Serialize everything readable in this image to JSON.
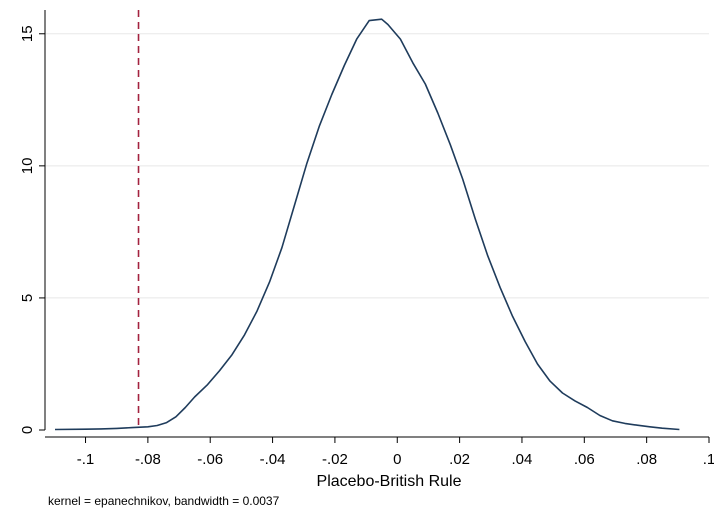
{
  "chart_data": {
    "type": "line",
    "title": "",
    "xlabel": "Placebo-British Rule",
    "ylabel": "",
    "xlim": [
      -0.113,
      0.1
    ],
    "ylim": [
      0,
      15.9
    ],
    "x_ticks": [
      -0.1,
      -0.08,
      -0.06,
      -0.04,
      -0.02,
      0,
      0.02,
      0.04,
      0.06,
      0.08,
      0.1
    ],
    "x_tick_labels": [
      "-.1",
      "-.08",
      "-.06",
      "-.04",
      "-.02",
      "0",
      ".02",
      ".04",
      ".06",
      ".08",
      ".1"
    ],
    "y_ticks": [
      0,
      5,
      10,
      15
    ],
    "y_tick_labels": [
      "0",
      "5",
      "10",
      "15"
    ],
    "grid": "horizontal",
    "reference_line": {
      "x": -0.083,
      "style": "dashed",
      "color": "#a3223f"
    },
    "series": [
      {
        "color": "#1f3c5c",
        "x": [
          -0.1098,
          -0.1,
          -0.095,
          -0.09,
          -0.085,
          -0.08,
          -0.077,
          -0.074,
          -0.071,
          -0.068,
          -0.065,
          -0.061,
          -0.057,
          -0.053,
          -0.049,
          -0.045,
          -0.041,
          -0.037,
          -0.033,
          -0.029,
          -0.025,
          -0.021,
          -0.017,
          -0.013,
          -0.009,
          -0.005,
          -0.003,
          0.001,
          0.005,
          0.009,
          0.013,
          0.017,
          0.021,
          0.025,
          0.029,
          0.033,
          0.037,
          0.041,
          0.045,
          0.049,
          0.053,
          0.057,
          0.061,
          0.065,
          0.069,
          0.073,
          0.077,
          0.081,
          0.085,
          0.0905
        ],
        "y": [
          0.02,
          0.03,
          0.04,
          0.06,
          0.09,
          0.12,
          0.17,
          0.28,
          0.5,
          0.85,
          1.25,
          1.7,
          2.25,
          2.85,
          3.6,
          4.5,
          5.6,
          6.9,
          8.5,
          10.1,
          11.5,
          12.7,
          13.8,
          14.8,
          15.5,
          15.55,
          15.35,
          14.8,
          13.9,
          13.1,
          12,
          10.8,
          9.5,
          8,
          6.6,
          5.4,
          4.3,
          3.35,
          2.5,
          1.85,
          1.4,
          1.1,
          0.85,
          0.55,
          0.35,
          0.25,
          0.18,
          0.12,
          0.07,
          0.02
        ]
      }
    ]
  },
  "note": "kernel = epanechnikov, bandwidth = 0.0037"
}
